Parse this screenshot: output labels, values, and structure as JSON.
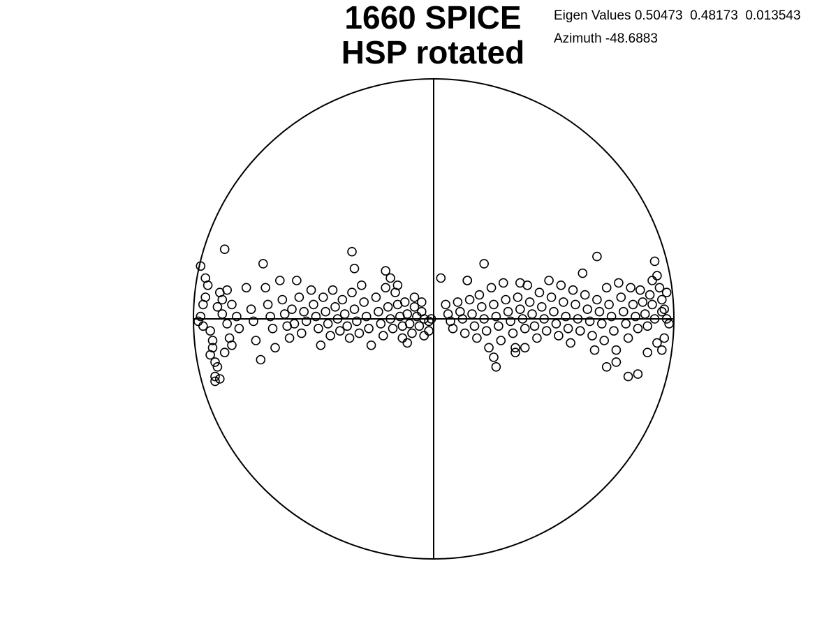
{
  "chart_data": {
    "type": "scatter",
    "projection": "equal-area-stereonet",
    "title_lines": [
      "1660 SPICE",
      "HSP rotated"
    ],
    "annotations": {
      "eigen_values": "Eigen Values 0.50473  0.48173  0.013543",
      "azimuth": "Azimuth -48.6883"
    },
    "axis_range": [
      -1,
      1
    ],
    "grid": false,
    "marker": "open-circle",
    "colors": {
      "stroke": "#000000",
      "background": "#ffffff"
    },
    "points": [
      [
        -0.97,
        0.22
      ],
      [
        -0.95,
        0.17
      ],
      [
        -0.94,
        0.14
      ],
      [
        -0.95,
        0.09
      ],
      [
        -0.96,
        0.06
      ],
      [
        -0.97,
        0.01
      ],
      [
        -0.98,
        -0.01
      ],
      [
        -0.96,
        -0.03
      ],
      [
        -0.93,
        -0.05
      ],
      [
        -0.92,
        -0.09
      ],
      [
        -0.92,
        -0.12
      ],
      [
        -0.93,
        -0.15
      ],
      [
        -0.91,
        -0.18
      ],
      [
        -0.9,
        -0.2
      ],
      [
        -0.89,
        -0.25
      ],
      [
        -0.91,
        -0.24
      ],
      [
        -0.91,
        -0.26
      ],
      [
        -0.87,
        0.29
      ],
      [
        -0.89,
        0.11
      ],
      [
        -0.9,
        0.05
      ],
      [
        -0.88,
        0.02
      ],
      [
        -0.86,
        -0.02
      ],
      [
        -0.85,
        -0.08
      ],
      [
        -0.84,
        -0.11
      ],
      [
        -0.87,
        -0.14
      ],
      [
        -0.88,
        0.08
      ],
      [
        -0.86,
        0.12
      ],
      [
        -0.84,
        0.06
      ],
      [
        -0.82,
        0.01
      ],
      [
        -0.81,
        -0.04
      ],
      [
        -0.78,
        0.13
      ],
      [
        -0.76,
        0.04
      ],
      [
        -0.75,
        -0.01
      ],
      [
        -0.74,
        -0.09
      ],
      [
        -0.72,
        -0.17
      ],
      [
        -0.71,
        0.23
      ],
      [
        -0.7,
        0.13
      ],
      [
        -0.69,
        0.06
      ],
      [
        -0.68,
        0.01
      ],
      [
        -0.67,
        -0.04
      ],
      [
        -0.66,
        -0.12
      ],
      [
        -0.64,
        0.16
      ],
      [
        -0.63,
        0.08
      ],
      [
        -0.62,
        0.02
      ],
      [
        -0.61,
        -0.03
      ],
      [
        -0.6,
        -0.08
      ],
      [
        -0.59,
        0.04
      ],
      [
        -0.58,
        -0.02
      ],
      [
        -0.57,
        0.16
      ],
      [
        -0.56,
        0.09
      ],
      [
        -0.55,
        -0.06
      ],
      [
        -0.54,
        0.03
      ],
      [
        -0.53,
        -0.01
      ],
      [
        -0.51,
        0.12
      ],
      [
        -0.5,
        0.06
      ],
      [
        -0.49,
        0.01
      ],
      [
        -0.48,
        -0.04
      ],
      [
        -0.47,
        -0.11
      ],
      [
        -0.46,
        0.09
      ],
      [
        -0.45,
        0.03
      ],
      [
        -0.44,
        -0.02
      ],
      [
        -0.43,
        -0.07
      ],
      [
        -0.42,
        0.12
      ],
      [
        -0.41,
        0.05
      ],
      [
        -0.4,
        0.0
      ],
      [
        -0.39,
        -0.05
      ],
      [
        -0.38,
        0.08
      ],
      [
        -0.37,
        0.02
      ],
      [
        -0.36,
        -0.03
      ],
      [
        -0.35,
        -0.08
      ],
      [
        -0.34,
        0.11
      ],
      [
        -0.33,
        0.04
      ],
      [
        -0.32,
        -0.01
      ],
      [
        -0.31,
        -0.06
      ],
      [
        -0.3,
        0.14
      ],
      [
        -0.29,
        0.07
      ],
      [
        -0.28,
        0.01
      ],
      [
        -0.27,
        -0.04
      ],
      [
        -0.26,
        -0.11
      ],
      [
        -0.34,
        0.28
      ],
      [
        -0.33,
        0.21
      ],
      [
        -0.24,
        0.09
      ],
      [
        -0.23,
        0.03
      ],
      [
        -0.22,
        -0.02
      ],
      [
        -0.21,
        -0.07
      ],
      [
        -0.2,
        0.13
      ],
      [
        -0.19,
        0.05
      ],
      [
        -0.18,
        0.0
      ],
      [
        -0.17,
        -0.04
      ],
      [
        -0.16,
        0.11
      ],
      [
        -0.15,
        0.06
      ],
      [
        -0.14,
        0.01
      ],
      [
        -0.13,
        -0.03
      ],
      [
        -0.12,
        0.07
      ],
      [
        -0.11,
        0.02
      ],
      [
        -0.1,
        -0.02
      ],
      [
        -0.09,
        -0.06
      ],
      [
        -0.08,
        0.05
      ],
      [
        -0.07,
        0.01
      ],
      [
        -0.06,
        -0.03
      ],
      [
        -0.05,
        0.03
      ],
      [
        -0.04,
        0.0
      ],
      [
        -0.2,
        0.2
      ],
      [
        -0.18,
        0.17
      ],
      [
        -0.15,
        0.14
      ],
      [
        -0.08,
        0.09
      ],
      [
        -0.05,
        0.07
      ],
      [
        -0.02,
        -0.01
      ],
      [
        -0.01,
        0.0
      ],
      [
        -0.13,
        -0.08
      ],
      [
        -0.11,
        -0.1
      ],
      [
        -0.02,
        -0.05
      ],
      [
        -0.04,
        -0.07
      ],
      [
        0.03,
        0.17
      ],
      [
        0.05,
        0.06
      ],
      [
        0.06,
        0.02
      ],
      [
        0.07,
        -0.01
      ],
      [
        0.08,
        -0.04
      ],
      [
        0.1,
        0.07
      ],
      [
        0.11,
        0.03
      ],
      [
        0.12,
        0.0
      ],
      [
        0.13,
        -0.06
      ],
      [
        0.14,
        0.16
      ],
      [
        0.15,
        0.08
      ],
      [
        0.16,
        0.02
      ],
      [
        0.17,
        -0.03
      ],
      [
        0.18,
        -0.08
      ],
      [
        0.19,
        0.1
      ],
      [
        0.2,
        0.05
      ],
      [
        0.21,
        0.0
      ],
      [
        0.22,
        -0.05
      ],
      [
        0.23,
        -0.12
      ],
      [
        0.24,
        0.13
      ],
      [
        0.25,
        0.06
      ],
      [
        0.26,
        0.01
      ],
      [
        0.27,
        -0.03
      ],
      [
        0.28,
        -0.09
      ],
      [
        0.29,
        0.15
      ],
      [
        0.3,
        0.08
      ],
      [
        0.31,
        0.03
      ],
      [
        0.32,
        -0.01
      ],
      [
        0.33,
        -0.06
      ],
      [
        0.34,
        -0.12
      ],
      [
        0.21,
        0.23
      ],
      [
        0.14,
        0.16
      ],
      [
        0.25,
        -0.16
      ],
      [
        0.26,
        -0.2
      ],
      [
        0.35,
        0.09
      ],
      [
        0.36,
        0.04
      ],
      [
        0.37,
        0.0
      ],
      [
        0.38,
        -0.04
      ],
      [
        0.39,
        0.14
      ],
      [
        0.4,
        0.07
      ],
      [
        0.41,
        0.02
      ],
      [
        0.42,
        -0.03
      ],
      [
        0.43,
        -0.08
      ],
      [
        0.44,
        0.11
      ],
      [
        0.45,
        0.05
      ],
      [
        0.46,
        0.0
      ],
      [
        0.47,
        -0.05
      ],
      [
        0.48,
        0.16
      ],
      [
        0.49,
        0.09
      ],
      [
        0.5,
        0.03
      ],
      [
        0.51,
        -0.02
      ],
      [
        0.52,
        -0.07
      ],
      [
        0.36,
        0.15
      ],
      [
        0.38,
        -0.12
      ],
      [
        0.34,
        -0.14
      ],
      [
        0.53,
        0.14
      ],
      [
        0.54,
        0.07
      ],
      [
        0.55,
        0.01
      ],
      [
        0.56,
        -0.04
      ],
      [
        0.57,
        -0.1
      ],
      [
        0.58,
        0.12
      ],
      [
        0.59,
        0.06
      ],
      [
        0.6,
        0.0
      ],
      [
        0.61,
        -0.05
      ],
      [
        0.62,
        0.19
      ],
      [
        0.63,
        0.1
      ],
      [
        0.64,
        0.04
      ],
      [
        0.65,
        -0.01
      ],
      [
        0.66,
        -0.07
      ],
      [
        0.67,
        -0.13
      ],
      [
        0.68,
        0.08
      ],
      [
        0.69,
        0.03
      ],
      [
        0.7,
        -0.02
      ],
      [
        0.71,
        -0.09
      ],
      [
        0.72,
        0.13
      ],
      [
        0.73,
        0.06
      ],
      [
        0.74,
        0.01
      ],
      [
        0.75,
        -0.05
      ],
      [
        0.76,
        -0.13
      ],
      [
        0.77,
        0.15
      ],
      [
        0.78,
        0.09
      ],
      [
        0.79,
        0.03
      ],
      [
        0.8,
        -0.02
      ],
      [
        0.81,
        -0.08
      ],
      [
        0.68,
        0.26
      ],
      [
        0.72,
        -0.2
      ],
      [
        0.76,
        -0.18
      ],
      [
        0.81,
        -0.24
      ],
      [
        0.85,
        -0.23
      ],
      [
        0.82,
        0.13
      ],
      [
        0.83,
        0.06
      ],
      [
        0.84,
        0.01
      ],
      [
        0.85,
        -0.04
      ],
      [
        0.86,
        0.12
      ],
      [
        0.87,
        0.07
      ],
      [
        0.88,
        0.02
      ],
      [
        0.89,
        -0.03
      ],
      [
        0.9,
        0.1
      ],
      [
        0.91,
        0.06
      ],
      [
        0.92,
        0.0
      ],
      [
        0.93,
        0.18
      ],
      [
        0.94,
        0.13
      ],
      [
        0.95,
        0.08
      ],
      [
        0.96,
        0.04
      ],
      [
        0.97,
        0.11
      ],
      [
        0.98,
        -0.02
      ],
      [
        0.92,
        0.24
      ],
      [
        0.89,
        -0.14
      ],
      [
        0.93,
        -0.1
      ],
      [
        0.95,
        -0.13
      ],
      [
        0.96,
        -0.08
      ],
      [
        0.91,
        0.16
      ],
      [
        0.95,
        0.03
      ],
      [
        0.97,
        0.0
      ]
    ]
  }
}
